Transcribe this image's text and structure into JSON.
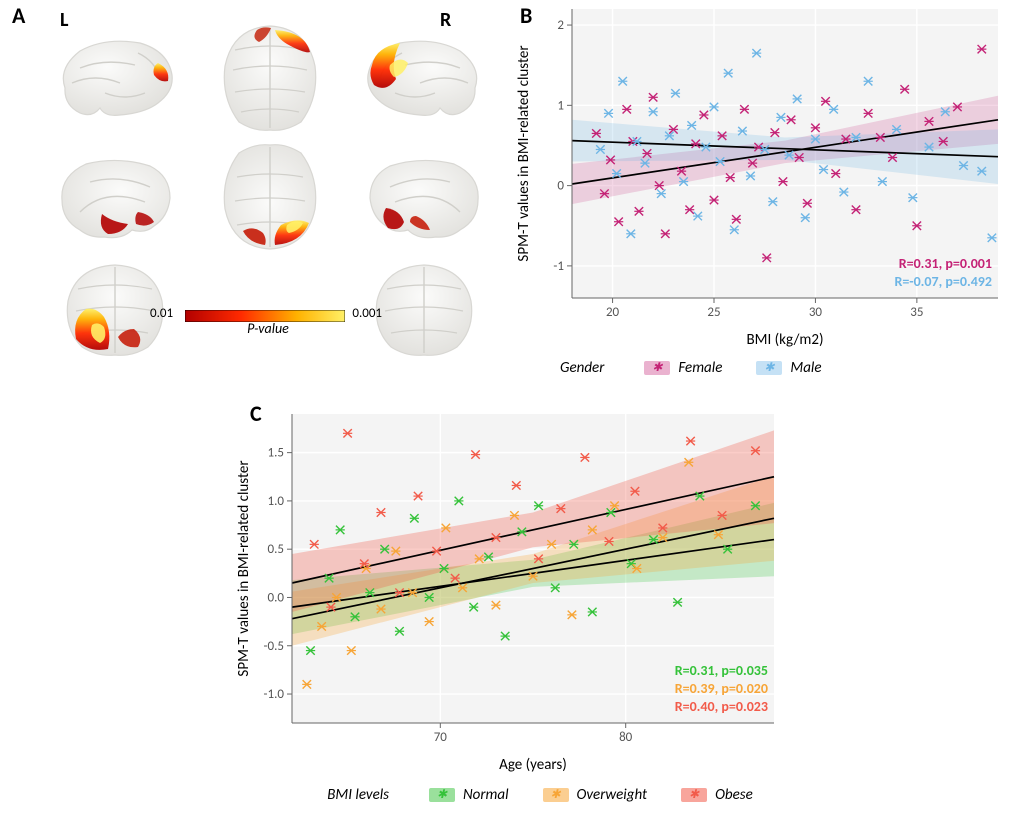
{
  "panel_labels": {
    "A": "A",
    "B": "B",
    "C": "C"
  },
  "lr": {
    "L": "L",
    "R": "R"
  },
  "colors": {
    "female": "#c42376",
    "female_band": "rgba(196,35,118,0.18)",
    "male": "#6db5e5",
    "male_band": "rgba(109,181,229,0.22)",
    "normal": "#35c23a",
    "normal_band": "rgba(53,194,58,0.25)",
    "overweight": "#f7a537",
    "overweight_band": "rgba(247,165,55,0.28)",
    "obese": "#f25b4a",
    "obese_band": "rgba(242,91,74,0.30)",
    "axis": "#888888",
    "panel_bg": "#f4f4f4",
    "brain_light": "#f3f3f2",
    "brain_shadow": "#e3e2df",
    "brain_stroke": "#d8d7d3",
    "activation_gradient": [
      "#b20000",
      "#ff2a00",
      "#ffb200",
      "#fff066"
    ]
  },
  "panel_A": {
    "colorbar": {
      "left_label": "0.01",
      "right_label": "0.001",
      "title": "P-value",
      "gradient_stops": [
        "#b20000",
        "#ff2a00",
        "#ffb200",
        "#fff066"
      ]
    }
  },
  "panel_B": {
    "type": "scatter",
    "x_label": "BMI (kg/m2)",
    "y_label": "SPM-T values in BMI-related cluster",
    "xlim": [
      18,
      39
    ],
    "xticks": [
      20,
      25,
      30,
      35
    ],
    "ylim": [
      -1.4,
      2.2
    ],
    "yticks": [
      -1,
      0,
      1,
      2
    ],
    "label_fontsize": 15,
    "tick_fontsize": 13,
    "series": {
      "female": {
        "color": "#c42376",
        "band_color": "rgba(196,35,118,0.18)",
        "stat": "R=0.31, p=0.001",
        "fit": {
          "x0": 18,
          "y0": 0.02,
          "x1": 39,
          "y1": 0.82
        },
        "band_half_width": {
          "start": 0.25,
          "mid": 0.14,
          "end": 0.3
        },
        "points": [
          [
            19.2,
            0.65
          ],
          [
            19.6,
            -0.1
          ],
          [
            19.9,
            0.32
          ],
          [
            20.3,
            -0.45
          ],
          [
            20.7,
            0.95
          ],
          [
            21.0,
            0.55
          ],
          [
            21.3,
            -0.32
          ],
          [
            21.7,
            0.4
          ],
          [
            22.0,
            1.1
          ],
          [
            22.3,
            0.0
          ],
          [
            22.6,
            -0.6
          ],
          [
            23.0,
            0.7
          ],
          [
            23.4,
            0.18
          ],
          [
            23.8,
            -0.3
          ],
          [
            24.1,
            0.52
          ],
          [
            24.5,
            0.88
          ],
          [
            25.0,
            -0.18
          ],
          [
            25.4,
            0.62
          ],
          [
            25.8,
            0.1
          ],
          [
            26.1,
            -0.42
          ],
          [
            26.5,
            0.95
          ],
          [
            26.9,
            0.28
          ],
          [
            27.2,
            0.48
          ],
          [
            27.6,
            -0.9
          ],
          [
            28.0,
            0.66
          ],
          [
            28.4,
            0.05
          ],
          [
            28.8,
            0.82
          ],
          [
            29.2,
            0.35
          ],
          [
            29.6,
            -0.22
          ],
          [
            30.0,
            0.72
          ],
          [
            30.5,
            1.05
          ],
          [
            31.0,
            0.15
          ],
          [
            31.5,
            0.58
          ],
          [
            32.0,
            -0.3
          ],
          [
            32.6,
            0.9
          ],
          [
            33.2,
            0.6
          ],
          [
            33.8,
            0.35
          ],
          [
            34.4,
            1.2
          ],
          [
            35.0,
            -0.5
          ],
          [
            35.6,
            0.8
          ],
          [
            36.3,
            0.55
          ],
          [
            37.0,
            0.98
          ],
          [
            38.2,
            1.7
          ]
        ]
      },
      "male": {
        "color": "#6db5e5",
        "band_color": "rgba(109,181,229,0.22)",
        "stat": "R=-0.07, p=0.492",
        "fit": {
          "x0": 18,
          "y0": 0.56,
          "x1": 39,
          "y1": 0.36
        },
        "band_half_width": {
          "start": 0.26,
          "mid": 0.14,
          "end": 0.34
        },
        "points": [
          [
            19.4,
            0.45
          ],
          [
            19.8,
            0.9
          ],
          [
            20.2,
            0.15
          ],
          [
            20.5,
            1.3
          ],
          [
            20.9,
            -0.6
          ],
          [
            21.2,
            0.55
          ],
          [
            21.6,
            0.28
          ],
          [
            22.0,
            0.92
          ],
          [
            22.4,
            -0.1
          ],
          [
            22.8,
            0.62
          ],
          [
            23.1,
            1.15
          ],
          [
            23.5,
            0.05
          ],
          [
            23.9,
            0.75
          ],
          [
            24.2,
            -0.38
          ],
          [
            24.6,
            0.48
          ],
          [
            25.0,
            0.98
          ],
          [
            25.3,
            0.3
          ],
          [
            25.7,
            1.4
          ],
          [
            26.0,
            -0.55
          ],
          [
            26.4,
            0.68
          ],
          [
            26.8,
            0.12
          ],
          [
            27.1,
            1.65
          ],
          [
            27.5,
            0.45
          ],
          [
            27.9,
            -0.2
          ],
          [
            28.3,
            0.85
          ],
          [
            28.7,
            0.38
          ],
          [
            29.1,
            1.08
          ],
          [
            29.5,
            -0.4
          ],
          [
            30.0,
            0.58
          ],
          [
            30.4,
            0.2
          ],
          [
            30.9,
            0.95
          ],
          [
            31.4,
            -0.08
          ],
          [
            32.0,
            0.6
          ],
          [
            32.6,
            1.3
          ],
          [
            33.3,
            0.05
          ],
          [
            34.0,
            0.7
          ],
          [
            34.8,
            -0.15
          ],
          [
            35.6,
            0.48
          ],
          [
            36.4,
            0.92
          ],
          [
            37.3,
            0.25
          ],
          [
            38.2,
            0.18
          ],
          [
            38.7,
            -0.65
          ]
        ]
      }
    },
    "legend": {
      "title": "Gender",
      "items": [
        {
          "label": "Female",
          "swatch": "rgba(196,35,118,0.35)",
          "marker": "#c42376"
        },
        {
          "label": "Male",
          "swatch": "rgba(109,181,229,0.40)",
          "marker": "#6db5e5"
        }
      ]
    }
  },
  "panel_C": {
    "type": "scatter",
    "x_label": "Age (years)",
    "y_label": "SPM-T values in BMI-related cluster",
    "xlim": [
      62,
      88
    ],
    "xticks": [
      70,
      80
    ],
    "ylim": [
      -1.3,
      1.9
    ],
    "yticks": [
      -1.0,
      -0.5,
      0.0,
      0.5,
      1.0,
      1.5
    ],
    "label_fontsize": 15,
    "tick_fontsize": 13,
    "series": {
      "normal": {
        "color": "#35c23a",
        "band_color": "rgba(53,194,58,0.25)",
        "stat": "R=0.31, p=0.035",
        "fit": {
          "x0": 62,
          "y0": -0.1,
          "x1": 88,
          "y1": 0.6
        },
        "band_half_width": {
          "start": 0.28,
          "mid": 0.14,
          "end": 0.38
        },
        "points": [
          [
            63.0,
            -0.55
          ],
          [
            64.0,
            0.2
          ],
          [
            64.6,
            0.7
          ],
          [
            65.4,
            -0.2
          ],
          [
            66.2,
            0.05
          ],
          [
            67.0,
            0.5
          ],
          [
            67.8,
            -0.35
          ],
          [
            68.6,
            0.82
          ],
          [
            69.4,
            0.0
          ],
          [
            70.2,
            0.3
          ],
          [
            71.0,
            1.0
          ],
          [
            71.8,
            -0.1
          ],
          [
            72.6,
            0.42
          ],
          [
            73.5,
            -0.4
          ],
          [
            74.4,
            0.68
          ],
          [
            75.3,
            0.95
          ],
          [
            76.2,
            0.1
          ],
          [
            77.2,
            0.55
          ],
          [
            78.2,
            -0.15
          ],
          [
            79.2,
            0.88
          ],
          [
            80.3,
            0.35
          ],
          [
            81.5,
            0.6
          ],
          [
            82.8,
            -0.05
          ],
          [
            84.0,
            1.05
          ],
          [
            85.5,
            0.5
          ],
          [
            87.0,
            0.95
          ]
        ]
      },
      "overweight": {
        "color": "#f7a537",
        "band_color": "rgba(247,165,55,0.28)",
        "stat": "R=0.39, p=0.020",
        "fit": {
          "x0": 62,
          "y0": -0.22,
          "x1": 88,
          "y1": 0.82
        },
        "band_half_width": {
          "start": 0.28,
          "mid": 0.15,
          "end": 0.44
        },
        "points": [
          [
            62.8,
            -0.9
          ],
          [
            63.6,
            -0.3
          ],
          [
            64.4,
            0.0
          ],
          [
            65.2,
            -0.55
          ],
          [
            66.0,
            0.3
          ],
          [
            66.8,
            -0.12
          ],
          [
            67.6,
            0.48
          ],
          [
            68.5,
            0.05
          ],
          [
            69.4,
            -0.25
          ],
          [
            70.3,
            0.72
          ],
          [
            71.2,
            0.1
          ],
          [
            72.1,
            0.4
          ],
          [
            73.0,
            -0.08
          ],
          [
            74.0,
            0.85
          ],
          [
            75.0,
            0.22
          ],
          [
            76.0,
            0.55
          ],
          [
            77.1,
            -0.18
          ],
          [
            78.2,
            0.7
          ],
          [
            79.4,
            0.95
          ],
          [
            80.6,
            0.3
          ],
          [
            82.0,
            0.62
          ],
          [
            83.4,
            1.4
          ],
          [
            85.0,
            0.65
          ]
        ]
      },
      "obese": {
        "color": "#f25b4a",
        "band_color": "rgba(242,91,74,0.30)",
        "stat": "R=0.40, p=0.023",
        "fit": {
          "x0": 62,
          "y0": 0.15,
          "x1": 88,
          "y1": 1.25
        },
        "band_half_width": {
          "start": 0.3,
          "mid": 0.18,
          "end": 0.48
        },
        "points": [
          [
            63.2,
            0.55
          ],
          [
            64.1,
            -0.1
          ],
          [
            65.0,
            1.7
          ],
          [
            65.9,
            0.35
          ],
          [
            66.8,
            0.88
          ],
          [
            67.8,
            0.05
          ],
          [
            68.8,
            1.05
          ],
          [
            69.8,
            0.48
          ],
          [
            70.8,
            0.2
          ],
          [
            71.9,
            1.48
          ],
          [
            73.0,
            0.62
          ],
          [
            74.1,
            1.16
          ],
          [
            75.3,
            0.4
          ],
          [
            76.5,
            0.92
          ],
          [
            77.8,
            1.45
          ],
          [
            79.1,
            0.58
          ],
          [
            80.5,
            1.1
          ],
          [
            82.0,
            0.72
          ],
          [
            83.5,
            1.62
          ],
          [
            85.2,
            0.85
          ],
          [
            87.0,
            1.52
          ]
        ]
      }
    },
    "legend": {
      "title": "BMI levels",
      "items": [
        {
          "label": "Normal",
          "swatch": "rgba(53,194,58,0.50)",
          "marker": "#35c23a"
        },
        {
          "label": "Overweight",
          "swatch": "rgba(247,165,55,0.55)",
          "marker": "#f7a537"
        },
        {
          "label": "Obese",
          "swatch": "rgba(242,91,74,0.55)",
          "marker": "#f25b4a"
        }
      ]
    }
  }
}
